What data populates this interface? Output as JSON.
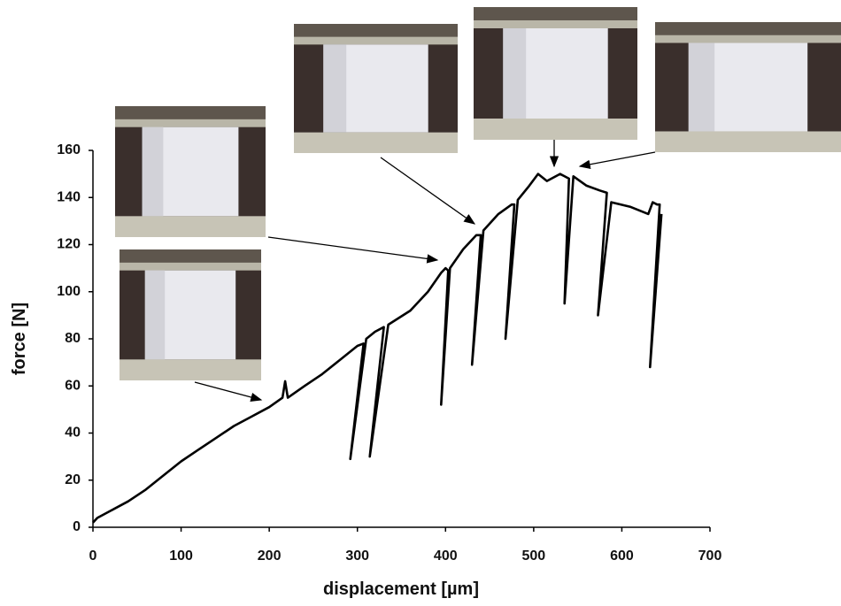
{
  "chart_data": {
    "type": "line",
    "x_label": "displacement [µm]",
    "y_label": "force [N]",
    "x": [
      0,
      5,
      20,
      40,
      60,
      80,
      100,
      120,
      140,
      160,
      180,
      200,
      215,
      218,
      221,
      240,
      260,
      280,
      300,
      307,
      292,
      310,
      320,
      330,
      314,
      335,
      360,
      380,
      395,
      400,
      403,
      395,
      405,
      420,
      435,
      440,
      430,
      443,
      460,
      475,
      478,
      468,
      482,
      495,
      505,
      515,
      530,
      540,
      535,
      545,
      560,
      575,
      583,
      573,
      588,
      610,
      630,
      635,
      640,
      643,
      632,
      645
    ],
    "values": [
      2,
      4,
      7,
      11,
      16,
      22,
      28,
      33,
      38,
      43,
      47,
      51,
      55,
      62,
      55,
      60,
      65,
      71,
      77,
      78,
      29,
      80,
      83,
      85,
      30,
      86,
      92,
      100,
      108,
      110,
      109,
      52,
      110,
      118,
      124,
      124,
      69,
      126,
      133,
      137,
      137,
      80,
      139,
      145,
      150,
      147,
      150,
      148,
      95,
      149,
      145,
      143,
      142,
      90,
      138,
      136,
      133,
      138,
      137,
      137,
      68,
      133
    ],
    "color": "#000000",
    "xlim": [
      0,
      700
    ],
    "xticks": [
      0,
      100,
      200,
      300,
      400,
      500,
      600,
      700
    ],
    "ylim": [
      0,
      160
    ],
    "yticks": [
      0,
      20,
      40,
      60,
      80,
      100,
      120,
      140,
      160
    ]
  }
}
